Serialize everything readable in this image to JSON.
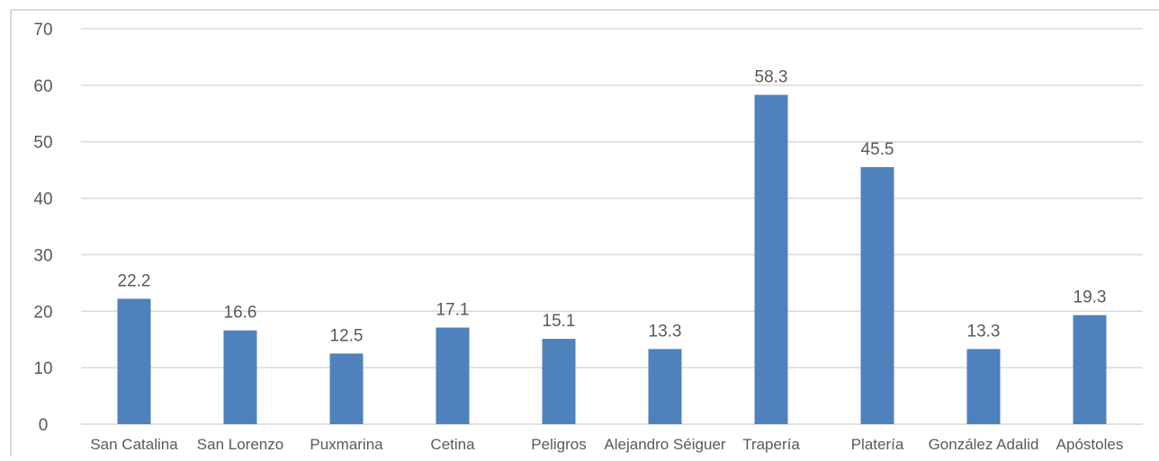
{
  "chart_data": {
    "type": "bar",
    "categories": [
      "San Catalina",
      "San Lorenzo",
      "Puxmarina",
      "Cetina",
      "Peligros",
      "Alejandro Séiguer",
      "Trapería",
      "Platería",
      "González Adalid",
      "Apóstoles"
    ],
    "series": [
      {
        "values": [
          22.2,
          16.6,
          12.5,
          17.1,
          15.1,
          13.3,
          58.3,
          45.5,
          13.3,
          19.3
        ]
      }
    ],
    "data_labels": [
      "22.2",
      "16.6",
      "12.5",
      "17.1",
      "15.1",
      "13.3",
      "58.3",
      "45.5",
      "13.3",
      "19.3"
    ],
    "y_ticks": [
      "0",
      "10",
      "20",
      "30",
      "40",
      "50",
      "60",
      "70"
    ],
    "ylim": [
      0,
      70
    ],
    "grid": true,
    "legend": "none",
    "title": "",
    "xlabel": "",
    "ylabel": "",
    "colors": {
      "bar": "#4F81BD",
      "grid": "#D9D9D9",
      "text": "#595959",
      "frame": "#D9D9D9"
    }
  }
}
